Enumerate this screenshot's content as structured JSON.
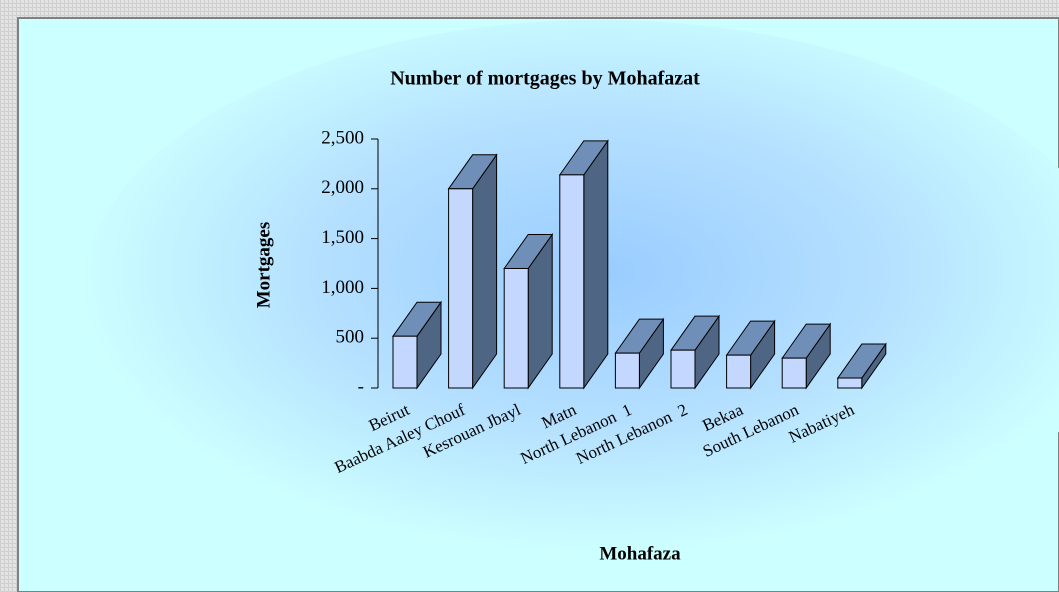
{
  "chart_data": {
    "type": "bar3d",
    "title": "Number of mortgages by Mohafazat",
    "x_label": "Mohafaza",
    "y_label": "Mortgages",
    "categories": [
      "Beirut",
      "Baabda Aaley Chouf",
      "Kesrouan Jbayl",
      "Matn",
      "North Lebanon  1",
      "North Lebanon  2",
      "Bekaa",
      "South Lebanon",
      "Nabatiyeh"
    ],
    "values": [
      520,
      2000,
      1200,
      2140,
      350,
      380,
      330,
      300,
      100
    ],
    "color": "#c4d8ff",
    "ylim": [
      0,
      2500
    ],
    "yticks": [
      {
        "value": 0,
        "label": "-"
      },
      500,
      {
        "value": 1000,
        "label": "1,000"
      },
      {
        "value": 1500,
        "label": "1,500"
      },
      {
        "value": 2000,
        "label": "2,000"
      },
      {
        "value": 2500,
        "label": "2,500"
      }
    ]
  }
}
